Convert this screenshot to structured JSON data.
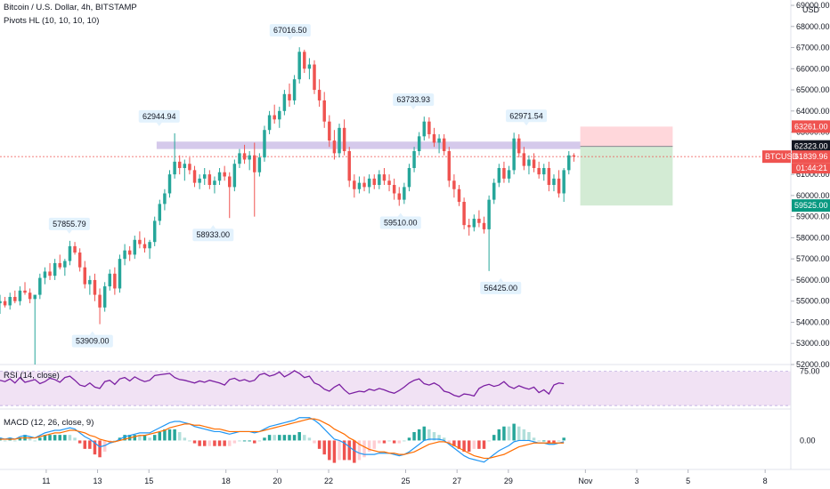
{
  "header": {
    "symbol_line": "Bitcoin / U.S. Dollar, 4h, BITSTAMP",
    "indicator_line": "Pivots HL (10, 10, 10, 10)",
    "currency": "USD"
  },
  "rsi": {
    "title": "RSI (14, close)",
    "level_label": "75.00"
  },
  "macd": {
    "title": "MACD (12, 26, close, 9)",
    "zero_label": "0.00"
  },
  "colors": {
    "up": "#26a69a",
    "down": "#ef5350",
    "rsi_line": "#7b1fa2",
    "rsi_band": "#e1bee7",
    "macd_line": "#2196f3",
    "signal_line": "#ff6d00",
    "resistance_band": "#b39ddb",
    "target_zone": "#c8e6c9",
    "stop_zone": "#ffcdd2"
  },
  "chart_data": {
    "type": "candlestick",
    "ylim": [
      52000,
      69000
    ],
    "y_ticks": [
      "52000.00",
      "53000.00",
      "54000.00",
      "55000.00",
      "56000.00",
      "57000.00",
      "58000.00",
      "59000.00",
      "60000.00",
      "61000.00",
      "62000.00",
      "63000.00",
      "64000.00",
      "65000.00",
      "66000.00",
      "67000.00",
      "68000.00",
      "69000.00"
    ],
    "x_ticks": [
      {
        "label": "11",
        "day": 11
      },
      {
        "label": "13",
        "day": 13
      },
      {
        "label": "15",
        "day": 15
      },
      {
        "label": "18",
        "day": 18
      },
      {
        "label": "20",
        "day": 20
      },
      {
        "label": "22",
        "day": 22
      },
      {
        "label": "25",
        "day": 25
      },
      {
        "label": "27",
        "day": 27
      },
      {
        "label": "29",
        "day": 29
      },
      {
        "label": "Nov",
        "day": 32
      },
      {
        "label": "3",
        "day": 34
      },
      {
        "label": "5",
        "day": 36
      },
      {
        "label": "8",
        "day": 39
      }
    ],
    "x_range_days": [
      9.2,
      40
    ],
    "pivots": [
      {
        "label": "57855.79",
        "day": 11.9,
        "price": 57855.79,
        "kind": "high"
      },
      {
        "label": "53909.00",
        "day": 12.8,
        "price": 53909.0,
        "kind": "low"
      },
      {
        "label": "62944.94",
        "day": 15.4,
        "price": 62944.94,
        "kind": "high"
      },
      {
        "label": "58933.00",
        "day": 17.5,
        "price": 58933.0,
        "kind": "low"
      },
      {
        "label": "67016.50",
        "day": 20.5,
        "price": 67016.5,
        "kind": "high"
      },
      {
        "label": "63733.93",
        "day": 25.3,
        "price": 63733.93,
        "kind": "high"
      },
      {
        "label": "59510.00",
        "day": 24.8,
        "price": 59510.0,
        "kind": "low"
      },
      {
        "label": "56425.00",
        "day": 28.7,
        "price": 56425.0,
        "kind": "low"
      },
      {
        "label": "62971.54",
        "day": 29.7,
        "price": 62971.54,
        "kind": "high"
      }
    ],
    "price_tags": [
      {
        "label": "63261.00",
        "price": 63261,
        "color": "#ef5350",
        "text_color": "#ffffff"
      },
      {
        "label": "62323.00",
        "price": 62323,
        "color": "#131722",
        "text_color": "#ffffff"
      },
      {
        "label": "61839.96",
        "price": 61839.96,
        "color": "#ef5350",
        "text_color": "#ffffff",
        "symbol": "BTCUSD",
        "timer": "01:44:21"
      },
      {
        "label": "59525.00",
        "price": 59525,
        "color": "#089981",
        "text_color": "#ffffff"
      }
    ],
    "resistance": {
      "low": 62200,
      "high": 62550,
      "day_start": 15.3,
      "day_end": 31.8
    },
    "position": {
      "entry": 62323,
      "stop": 63261,
      "target": 59525,
      "day_start": 31.8,
      "day_end": 35.4
    },
    "candles_ohlc": [
      [
        54900,
        55300,
        54400,
        55000
      ],
      [
        55000,
        55200,
        54700,
        54800
      ],
      [
        54800,
        55400,
        54600,
        55200
      ],
      [
        55200,
        55500,
        54900,
        55000
      ],
      [
        55000,
        55700,
        54800,
        55500
      ],
      [
        55500,
        55900,
        55300,
        55400
      ],
      [
        55400,
        55600,
        54900,
        55100
      ],
      [
        55100,
        55300,
        52000,
        55300
      ],
      [
        55300,
        56300,
        55100,
        56100
      ],
      [
        56100,
        56600,
        55800,
        56400
      ],
      [
        56400,
        56800,
        56000,
        56200
      ],
      [
        56200,
        57000,
        56000,
        56800
      ],
      [
        56800,
        57200,
        56500,
        56600
      ],
      [
        56600,
        57000,
        56200,
        56900
      ],
      [
        56900,
        57855,
        56700,
        57600
      ],
      [
        57600,
        57800,
        57200,
        57300
      ],
      [
        57300,
        57500,
        56400,
        56600
      ],
      [
        56600,
        56900,
        55600,
        55800
      ],
      [
        55800,
        56200,
        55300,
        56000
      ],
      [
        56000,
        56300,
        55000,
        55300
      ],
      [
        55300,
        55600,
        53909,
        54700
      ],
      [
        54700,
        55900,
        54500,
        55700
      ],
      [
        55700,
        56500,
        55500,
        56300
      ],
      [
        56300,
        56600,
        55300,
        55600
      ],
      [
        55600,
        57200,
        55400,
        57000
      ],
      [
        57000,
        57700,
        56700,
        57400
      ],
      [
        57400,
        57600,
        56900,
        57200
      ],
      [
        57200,
        58100,
        57000,
        57900
      ],
      [
        57900,
        58300,
        57500,
        57700
      ],
      [
        57700,
        58000,
        57300,
        57500
      ],
      [
        57500,
        57900,
        57000,
        57800
      ],
      [
        57800,
        59000,
        57600,
        58800
      ],
      [
        58800,
        59800,
        58600,
        59600
      ],
      [
        59600,
        60300,
        59300,
        60100
      ],
      [
        60100,
        61200,
        59900,
        61000
      ],
      [
        61000,
        62944,
        60800,
        61600
      ],
      [
        61600,
        61900,
        61000,
        61300
      ],
      [
        61300,
        61700,
        60700,
        61500
      ],
      [
        61500,
        61800,
        61000,
        61200
      ],
      [
        61200,
        61400,
        60400,
        60600
      ],
      [
        60600,
        61000,
        60300,
        60800
      ],
      [
        60800,
        61300,
        60500,
        61000
      ],
      [
        61000,
        61200,
        60300,
        60500
      ],
      [
        60500,
        60900,
        60100,
        60700
      ],
      [
        60700,
        61300,
        60500,
        61100
      ],
      [
        61100,
        61400,
        60700,
        60900
      ],
      [
        60900,
        61100,
        58933,
        60400
      ],
      [
        60400,
        61700,
        60200,
        61500
      ],
      [
        61500,
        62200,
        61300,
        62000
      ],
      [
        62000,
        62400,
        61500,
        61700
      ],
      [
        61700,
        62100,
        61200,
        61900
      ],
      [
        61900,
        62500,
        59000,
        61100
      ],
      [
        61100,
        62000,
        60900,
        61800
      ],
      [
        61800,
        63300,
        61600,
        63100
      ],
      [
        63100,
        64000,
        62900,
        63800
      ],
      [
        63800,
        64300,
        63400,
        63600
      ],
      [
        63600,
        64200,
        63200,
        64000
      ],
      [
        64000,
        65000,
        63800,
        64800
      ],
      [
        64800,
        65300,
        64200,
        64500
      ],
      [
        64500,
        65700,
        64300,
        65500
      ],
      [
        65500,
        67016,
        65300,
        66800
      ],
      [
        66800,
        66900,
        65800,
        66000
      ],
      [
        66000,
        66500,
        65500,
        66200
      ],
      [
        66200,
        66400,
        64800,
        65000
      ],
      [
        65000,
        65500,
        64200,
        64500
      ],
      [
        64500,
        64900,
        63200,
        63500
      ],
      [
        63500,
        63800,
        62300,
        62600
      ],
      [
        62600,
        63100,
        61700,
        62000
      ],
      [
        62000,
        63400,
        61800,
        63200
      ],
      [
        63200,
        63600,
        61900,
        62100
      ],
      [
        62100,
        62300,
        60400,
        60700
      ],
      [
        60700,
        61000,
        59900,
        60300
      ],
      [
        60300,
        60900,
        60100,
        60600
      ],
      [
        60600,
        60900,
        60200,
        60400
      ],
      [
        60400,
        61000,
        60100,
        60800
      ],
      [
        60800,
        61000,
        60300,
        60500
      ],
      [
        60500,
        61200,
        60300,
        61000
      ],
      [
        61000,
        61300,
        60500,
        60700
      ],
      [
        60700,
        61000,
        60200,
        60500
      ],
      [
        60500,
        60800,
        59800,
        60100
      ],
      [
        60100,
        60400,
        59510,
        59800
      ],
      [
        59800,
        60600,
        59600,
        60400
      ],
      [
        60400,
        61500,
        60200,
        61300
      ],
      [
        61300,
        62300,
        61100,
        62100
      ],
      [
        62100,
        63000,
        61900,
        62800
      ],
      [
        62800,
        63733,
        62600,
        63500
      ],
      [
        63500,
        63700,
        62700,
        62900
      ],
      [
        62900,
        63200,
        62300,
        62500
      ],
      [
        62500,
        62900,
        62000,
        62700
      ],
      [
        62700,
        62900,
        61900,
        62100
      ],
      [
        62100,
        62300,
        60400,
        60700
      ],
      [
        60700,
        61000,
        59900,
        60300
      ],
      [
        60300,
        60500,
        59500,
        59700
      ],
      [
        59700,
        59900,
        58400,
        58600
      ],
      [
        58600,
        58900,
        58100,
        58500
      ],
      [
        58500,
        59100,
        58300,
        58900
      ],
      [
        58900,
        59300,
        58500,
        58700
      ],
      [
        58700,
        59000,
        58200,
        58400
      ],
      [
        58400,
        60000,
        56425,
        59800
      ],
      [
        59800,
        60800,
        59600,
        60600
      ],
      [
        60600,
        61500,
        60400,
        61300
      ],
      [
        61300,
        61600,
        60600,
        60800
      ],
      [
        60800,
        61400,
        60600,
        61200
      ],
      [
        61200,
        62971,
        61000,
        62700
      ],
      [
        62700,
        62900,
        61800,
        62000
      ],
      [
        62000,
        62300,
        61200,
        61400
      ],
      [
        61400,
        61900,
        61000,
        61700
      ],
      [
        61700,
        62000,
        61100,
        61300
      ],
      [
        61300,
        61600,
        60800,
        61000
      ],
      [
        61000,
        61500,
        60700,
        61300
      ],
      [
        61300,
        61600,
        60200,
        60500
      ],
      [
        60500,
        61000,
        60200,
        60800
      ],
      [
        60800,
        61200,
        59900,
        60100
      ],
      [
        60100,
        61300,
        59700,
        61200
      ],
      [
        61200,
        62100,
        61000,
        61900
      ],
      [
        61900,
        62000,
        61600,
        61839.96
      ]
    ],
    "rsi_values": [
      62,
      60,
      64,
      58,
      66,
      59,
      61,
      63,
      57,
      60,
      65,
      63,
      59,
      66,
      68,
      62,
      55,
      53,
      58,
      52,
      50,
      60,
      62,
      56,
      64,
      66,
      61,
      67,
      63,
      60,
      62,
      69,
      70,
      71,
      72,
      66,
      63,
      62,
      60,
      58,
      61,
      59,
      62,
      60,
      58,
      55,
      63,
      65,
      61,
      63,
      60,
      62,
      70,
      72,
      68,
      70,
      74,
      67,
      71,
      76,
      72,
      66,
      68,
      58,
      55,
      49,
      46,
      52,
      56,
      48,
      42,
      44,
      46,
      45,
      49,
      47,
      50,
      48,
      45,
      43,
      47,
      52,
      58,
      62,
      64,
      57,
      55,
      58,
      54,
      46,
      44,
      40,
      38,
      42,
      41,
      39,
      50,
      54,
      56,
      53,
      55,
      60,
      53,
      50,
      54,
      51,
      49,
      52,
      44,
      48,
      42,
      55,
      58,
      57
    ],
    "macd_values": [
      0.2,
      0.1,
      0.2,
      0.1,
      0.3,
      0.4,
      0.3,
      0.2,
      0.4,
      0.6,
      0.7,
      0.8,
      0.8,
      0.9,
      1.0,
      0.9,
      0.6,
      0.3,
      0.1,
      -0.2,
      -0.5,
      -0.4,
      -0.2,
      -0.1,
      0.1,
      0.3,
      0.4,
      0.5,
      0.6,
      0.6,
      0.6,
      0.8,
      1.0,
      1.2,
      1.4,
      1.5,
      1.5,
      1.4,
      1.3,
      1.1,
      1.0,
      0.9,
      0.8,
      0.7,
      0.7,
      0.6,
      0.5,
      0.6,
      0.7,
      0.7,
      0.7,
      0.6,
      0.7,
      0.9,
      1.1,
      1.2,
      1.3,
      1.4,
      1.5,
      1.6,
      1.8,
      1.8,
      1.8,
      1.6,
      1.3,
      0.9,
      0.5,
      0.1,
      0.0,
      -0.2,
      -0.5,
      -0.8,
      -1.0,
      -1.1,
      -1.1,
      -1.1,
      -1.0,
      -1.0,
      -1.0,
      -1.1,
      -1.2,
      -1.1,
      -0.9,
      -0.6,
      -0.3,
      0.0,
      0.1,
      0.1,
      0.1,
      0.0,
      -0.3,
      -0.6,
      -0.9,
      -1.2,
      -1.4,
      -1.5,
      -1.6,
      -1.7,
      -1.4,
      -1.1,
      -0.8,
      -0.6,
      -0.4,
      -0.1,
      0.0,
      0.0,
      0.0,
      -0.1,
      -0.2,
      -0.2,
      -0.3,
      -0.3,
      -0.2,
      -0.1
    ],
    "signal_values": [
      0.1,
      0.1,
      0.1,
      0.1,
      0.2,
      0.2,
      0.2,
      0.2,
      0.3,
      0.4,
      0.5,
      0.6,
      0.6,
      0.7,
      0.8,
      0.8,
      0.7,
      0.6,
      0.4,
      0.3,
      0.1,
      0.0,
      -0.1,
      -0.1,
      0.0,
      0.1,
      0.2,
      0.3,
      0.4,
      0.4,
      0.5,
      0.6,
      0.7,
      0.8,
      1.0,
      1.1,
      1.2,
      1.3,
      1.3,
      1.2,
      1.2,
      1.1,
      1.0,
      0.9,
      0.9,
      0.8,
      0.7,
      0.7,
      0.7,
      0.7,
      0.7,
      0.7,
      0.7,
      0.8,
      0.9,
      1.0,
      1.1,
      1.2,
      1.3,
      1.4,
      1.5,
      1.6,
      1.7,
      1.7,
      1.6,
      1.4,
      1.2,
      0.9,
      0.7,
      0.5,
      0.2,
      0.0,
      -0.3,
      -0.5,
      -0.7,
      -0.8,
      -0.9,
      -0.9,
      -1.0,
      -1.0,
      -1.1,
      -1.1,
      -1.0,
      -0.9,
      -0.7,
      -0.5,
      -0.3,
      -0.2,
      -0.1,
      -0.1,
      -0.2,
      -0.4,
      -0.6,
      -0.8,
      -1.0,
      -1.2,
      -1.3,
      -1.4,
      -1.4,
      -1.3,
      -1.2,
      -1.1,
      -0.9,
      -0.7,
      -0.5,
      -0.4,
      -0.3,
      -0.2,
      -0.2,
      -0.2,
      -0.2,
      -0.2,
      -0.2,
      -0.2
    ],
    "macd_range": [
      -2,
      2.2
    ]
  }
}
